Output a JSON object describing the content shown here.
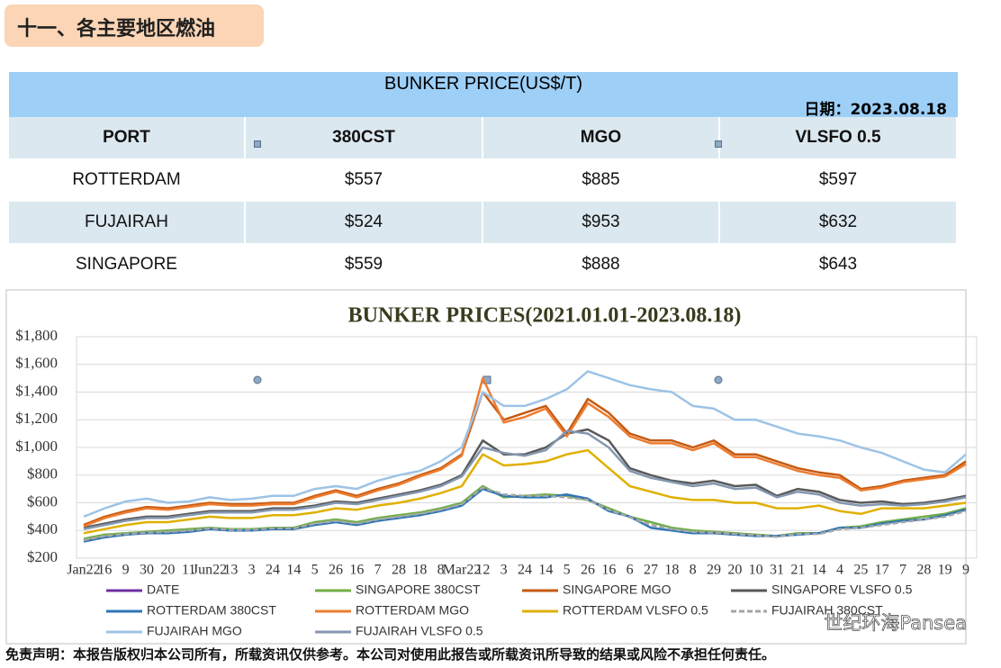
{
  "header": {
    "title": "十一、各主要地区燃油"
  },
  "table": {
    "title": "BUNKER PRICE(US$/T)",
    "date": "日期：2023.08.18",
    "columns": [
      "PORT",
      "380CST",
      "MGO",
      "VLSFO 0.5"
    ],
    "rows": [
      [
        "ROTTERDAM",
        "$557",
        "$885",
        "$597"
      ],
      [
        "FUJAIRAH",
        "$524",
        "$953",
        "$632"
      ],
      [
        "SINGAPORE",
        "$559",
        "$888",
        "$643"
      ]
    ]
  },
  "chart_data": {
    "type": "line",
    "title": "BUNKER PRICES(2021.01.01-2023.08.18)",
    "categories": [
      "Jan22",
      "16",
      "9",
      "30",
      "20",
      "11",
      "Jun22",
      "13",
      "3",
      "24",
      "14",
      "5",
      "26",
      "16",
      "7",
      "28",
      "18",
      "8",
      "Mar22",
      "12",
      "3",
      "24",
      "14",
      "5",
      "26",
      "16",
      "6",
      "27",
      "18",
      "8",
      "29",
      "20",
      "10",
      "31",
      "21",
      "14",
      "4",
      "25",
      "17",
      "7",
      "28",
      "19",
      "9"
    ],
    "ylim": [
      200,
      1800
    ],
    "yticks": [
      {
        "value": 200,
        "label": "$200"
      },
      {
        "value": 400,
        "label": "$400"
      },
      {
        "value": 600,
        "label": "$600"
      },
      {
        "value": 800,
        "label": "$800"
      },
      {
        "value": 1000,
        "label": "$1,000"
      },
      {
        "value": 1200,
        "label": "$1,200"
      },
      {
        "value": 1400,
        "label": "$1,400"
      },
      {
        "value": 1600,
        "label": "$1,600"
      },
      {
        "value": 1800,
        "label": "$1,800"
      }
    ],
    "grid": true,
    "series": [
      {
        "name": "DATE",
        "color": "#7030a0",
        "values": [
          null,
          null,
          null,
          null,
          null,
          null,
          null,
          null,
          null,
          null,
          null,
          null,
          null,
          null,
          null,
          null,
          null,
          null,
          null,
          null,
          null,
          null,
          null,
          null,
          null,
          null,
          null,
          null,
          null,
          null,
          null,
          null,
          null,
          null,
          null,
          null,
          null,
          null,
          null,
          null,
          null,
          null,
          null
        ]
      },
      {
        "name": "SINGAPORE 380CST",
        "color": "#70ad47",
        "values": [
          340,
          370,
          380,
          390,
          400,
          410,
          420,
          410,
          410,
          420,
          420,
          460,
          480,
          460,
          490,
          510,
          530,
          560,
          600,
          720,
          640,
          650,
          660,
          650,
          620,
          560,
          500,
          460,
          420,
          400,
          390,
          380,
          370,
          360,
          380,
          380,
          420,
          430,
          460,
          480,
          500,
          520,
          560
        ]
      },
      {
        "name": "SINGAPORE MGO",
        "color": "#c55a11",
        "values": [
          440,
          500,
          540,
          570,
          560,
          580,
          600,
          590,
          590,
          600,
          600,
          650,
          690,
          650,
          700,
          740,
          800,
          850,
          950,
          1400,
          1200,
          1250,
          1300,
          1100,
          1350,
          1250,
          1100,
          1050,
          1050,
          1000,
          1050,
          950,
          950,
          900,
          850,
          820,
          800,
          700,
          720,
          760,
          780,
          800,
          900
        ]
      },
      {
        "name": "SINGAPORE VLSFO 0.5",
        "color": "#595959",
        "values": [
          420,
          450,
          480,
          500,
          500,
          520,
          540,
          540,
          540,
          560,
          560,
          580,
          610,
          600,
          630,
          660,
          690,
          730,
          800,
          1050,
          950,
          950,
          1000,
          1100,
          1130,
          1050,
          850,
          800,
          760,
          740,
          760,
          720,
          730,
          650,
          700,
          680,
          620,
          600,
          610,
          590,
          600,
          620,
          650
        ]
      },
      {
        "name": "ROTTERDAM 380CST",
        "color": "#2e75b6",
        "values": [
          320,
          350,
          370,
          380,
          380,
          390,
          410,
          400,
          400,
          410,
          410,
          440,
          460,
          440,
          470,
          490,
          510,
          540,
          580,
          700,
          650,
          640,
          640,
          660,
          630,
          540,
          500,
          420,
          400,
          380,
          380,
          370,
          360,
          360,
          370,
          380,
          420,
          420,
          450,
          470,
          480,
          510,
          550
        ]
      },
      {
        "name": "ROTTERDAM MGO",
        "color": "#ed7d31",
        "values": [
          430,
          490,
          530,
          560,
          550,
          570,
          590,
          580,
          580,
          590,
          590,
          640,
          680,
          640,
          690,
          730,
          790,
          840,
          940,
          1500,
          1180,
          1220,
          1280,
          1080,
          1320,
          1220,
          1080,
          1030,
          1030,
          980,
          1030,
          930,
          930,
          880,
          830,
          800,
          780,
          690,
          710,
          750,
          770,
          790,
          880
        ]
      },
      {
        "name": "ROTTERDAM VLSFO 0.5",
        "color": "#e0b000",
        "values": [
          380,
          410,
          440,
          460,
          460,
          480,
          500,
          490,
          490,
          510,
          510,
          530,
          560,
          550,
          580,
          600,
          630,
          670,
          720,
          950,
          870,
          880,
          900,
          950,
          980,
          850,
          720,
          680,
          640,
          620,
          620,
          600,
          600,
          560,
          560,
          580,
          540,
          520,
          560,
          560,
          560,
          580,
          600
        ]
      },
      {
        "name": "FUJAIRAH 380CST",
        "color": "#a5a5a5",
        "dashed": true,
        "values": [
          330,
          360,
          375,
          385,
          390,
          400,
          415,
          405,
          405,
          415,
          415,
          450,
          470,
          450,
          480,
          500,
          520,
          550,
          590,
          710,
          660,
          650,
          650,
          640,
          620,
          550,
          495,
          440,
          410,
          390,
          385,
          375,
          365,
          355,
          375,
          375,
          410,
          420,
          440,
          460,
          480,
          500,
          540
        ]
      },
      {
        "name": "FUJAIRAH MGO",
        "color": "#9dc3e6",
        "values": [
          500,
          560,
          610,
          630,
          600,
          610,
          640,
          620,
          630,
          650,
          650,
          700,
          720,
          700,
          760,
          800,
          830,
          900,
          1000,
          1400,
          1300,
          1300,
          1350,
          1420,
          1550,
          1500,
          1450,
          1420,
          1400,
          1300,
          1280,
          1200,
          1200,
          1150,
          1100,
          1080,
          1050,
          1000,
          960,
          900,
          840,
          820,
          950
        ]
      },
      {
        "name": "FUJAIRAH VLSFO 0.5",
        "color": "#8497b0",
        "values": [
          410,
          440,
          470,
          490,
          490,
          510,
          530,
          530,
          530,
          550,
          550,
          570,
          600,
          590,
          620,
          650,
          680,
          720,
          790,
          1000,
          960,
          940,
          980,
          1120,
          1100,
          1000,
          830,
          780,
          750,
          720,
          740,
          700,
          710,
          640,
          680,
          660,
          600,
          580,
          590,
          580,
          590,
          610,
          640
        ]
      }
    ],
    "watermark": "世纪环海Pansea"
  },
  "footer": {
    "disclaimer": "免责声明：本报告版权归本公司所有，所载资讯仅供参考。本公司对使用此报告或所载资讯所导致的结果或风险不承担任何责任。"
  }
}
